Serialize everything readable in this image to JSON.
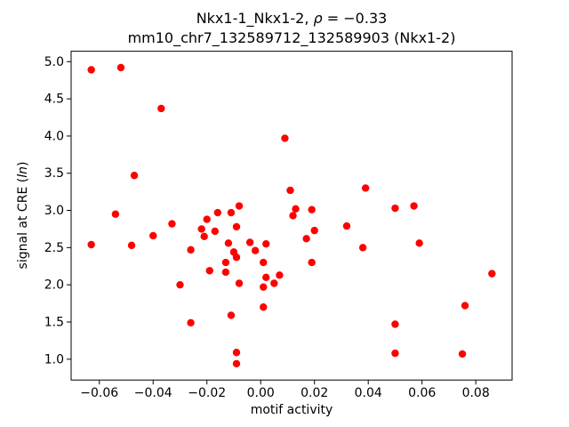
{
  "figure": {
    "title_line1_pre": "Nkx1-1_Nkx1-2, ",
    "title_rho": "ρ",
    "title_line1_post": " = −0.33",
    "title_line2": "mm10_chr7_132589712_132589903 (Nkx1-2)",
    "xlabel": "motif activity",
    "ylabel_pre": "signal at CRE (",
    "ylabel_italic": "ln",
    "ylabel_post": ")"
  },
  "chart_data": {
    "type": "scatter",
    "title": "Nkx1-1_Nkx1-2, ρ = −0.33",
    "subtitle": "mm10_chr7_132589712_132589903 (Nkx1-2)",
    "xlabel": "motif activity",
    "ylabel": "signal at CRE (ln)",
    "xlim": [
      -0.0705,
      0.0935
    ],
    "ylim": [
      0.72,
      5.14
    ],
    "xticks": [
      -0.06,
      -0.04,
      -0.02,
      0.0,
      0.02,
      0.04,
      0.06,
      0.08
    ],
    "yticks": [
      1.0,
      1.5,
      2.0,
      2.5,
      3.0,
      3.5,
      4.0,
      4.5,
      5.0
    ],
    "grid": false,
    "legend": false,
    "marker_color": "#ff0000",
    "marker_radius": 4.2,
    "points": [
      [
        -0.063,
        4.89
      ],
      [
        -0.063,
        2.54
      ],
      [
        -0.054,
        2.95
      ],
      [
        -0.052,
        4.92
      ],
      [
        -0.048,
        2.53
      ],
      [
        -0.047,
        3.47
      ],
      [
        -0.04,
        2.66
      ],
      [
        -0.037,
        4.37
      ],
      [
        -0.033,
        2.82
      ],
      [
        -0.03,
        2.0
      ],
      [
        -0.026,
        2.47
      ],
      [
        -0.026,
        1.49
      ],
      [
        -0.022,
        2.75
      ],
      [
        -0.021,
        2.65
      ],
      [
        -0.02,
        2.88
      ],
      [
        -0.019,
        2.19
      ],
      [
        -0.017,
        2.72
      ],
      [
        -0.016,
        2.97
      ],
      [
        -0.013,
        2.3
      ],
      [
        -0.013,
        2.17
      ],
      [
        -0.012,
        2.56
      ],
      [
        -0.011,
        2.97
      ],
      [
        -0.011,
        1.59
      ],
      [
        -0.01,
        2.44
      ],
      [
        -0.009,
        2.78
      ],
      [
        -0.009,
        2.37
      ],
      [
        -0.009,
        1.09
      ],
      [
        -0.009,
        0.94
      ],
      [
        -0.008,
        3.06
      ],
      [
        -0.008,
        2.02
      ],
      [
        -0.004,
        2.57
      ],
      [
        -0.002,
        2.46
      ],
      [
        0.001,
        2.3
      ],
      [
        0.001,
        1.97
      ],
      [
        0.001,
        1.7
      ],
      [
        0.002,
        2.55
      ],
      [
        0.002,
        2.1
      ],
      [
        0.005,
        2.02
      ],
      [
        0.007,
        2.13
      ],
      [
        0.009,
        3.97
      ],
      [
        0.011,
        3.27
      ],
      [
        0.012,
        2.93
      ],
      [
        0.013,
        3.02
      ],
      [
        0.017,
        2.62
      ],
      [
        0.019,
        3.01
      ],
      [
        0.019,
        2.3
      ],
      [
        0.02,
        2.73
      ],
      [
        0.032,
        2.79
      ],
      [
        0.038,
        2.5
      ],
      [
        0.039,
        3.3
      ],
      [
        0.05,
        3.03
      ],
      [
        0.05,
        1.47
      ],
      [
        0.05,
        1.08
      ],
      [
        0.057,
        3.06
      ],
      [
        0.059,
        2.56
      ],
      [
        0.075,
        1.07
      ],
      [
        0.076,
        1.72
      ],
      [
        0.086,
        2.15
      ]
    ]
  }
}
